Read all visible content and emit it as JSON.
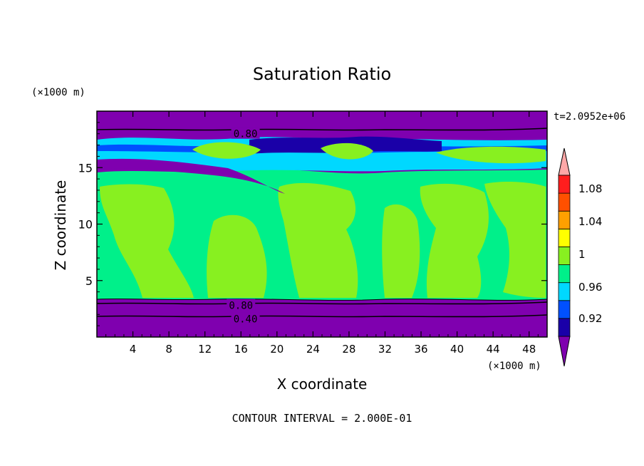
{
  "chart_data": {
    "type": "contour",
    "title": "Saturation Ratio",
    "xlabel": "X coordinate",
    "ylabel": "Z coordinate",
    "x_unit_label": "(×1000 m)",
    "y_unit_label": "(×1000 m)",
    "time_label": "t=2.0952e+06",
    "footer": "CONTOUR INTERVAL = 2.000E-01",
    "xlim": [
      0,
      50
    ],
    "ylim": [
      0,
      20
    ],
    "x_ticks": [
      4,
      8,
      12,
      16,
      20,
      24,
      28,
      32,
      36,
      40,
      44,
      48
    ],
    "y_ticks": [
      5,
      10,
      15
    ],
    "contour_labels": [
      {
        "text": "0.80",
        "x": 16.5,
        "y": 18.0
      },
      {
        "text": "0.80",
        "x": 16.0,
        "y": 2.8
      },
      {
        "text": "0.40",
        "x": 16.5,
        "y": 1.6
      }
    ],
    "colorbar": {
      "labels": [
        "1.08",
        "1.04",
        "1",
        "0.96",
        "0.92"
      ],
      "colors": [
        "#7f00af",
        "#1a00a8",
        "#0050ff",
        "#00d8ff",
        "#00f08a",
        "#88f020",
        "#ffff00",
        "#ffa000",
        "#ff5000",
        "#ff1e1e",
        "#ffa8a8"
      ]
    },
    "band_colors": {
      "lt_0_90": "#7f00af",
      "0_90_0_92": "#1a00a8",
      "0_94_0_96": "#0050ff",
      "0_96_0_98": "#00d8ff",
      "0_98_1_00": "#00f08a",
      "1_00_1_02": "#88f020"
    }
  }
}
